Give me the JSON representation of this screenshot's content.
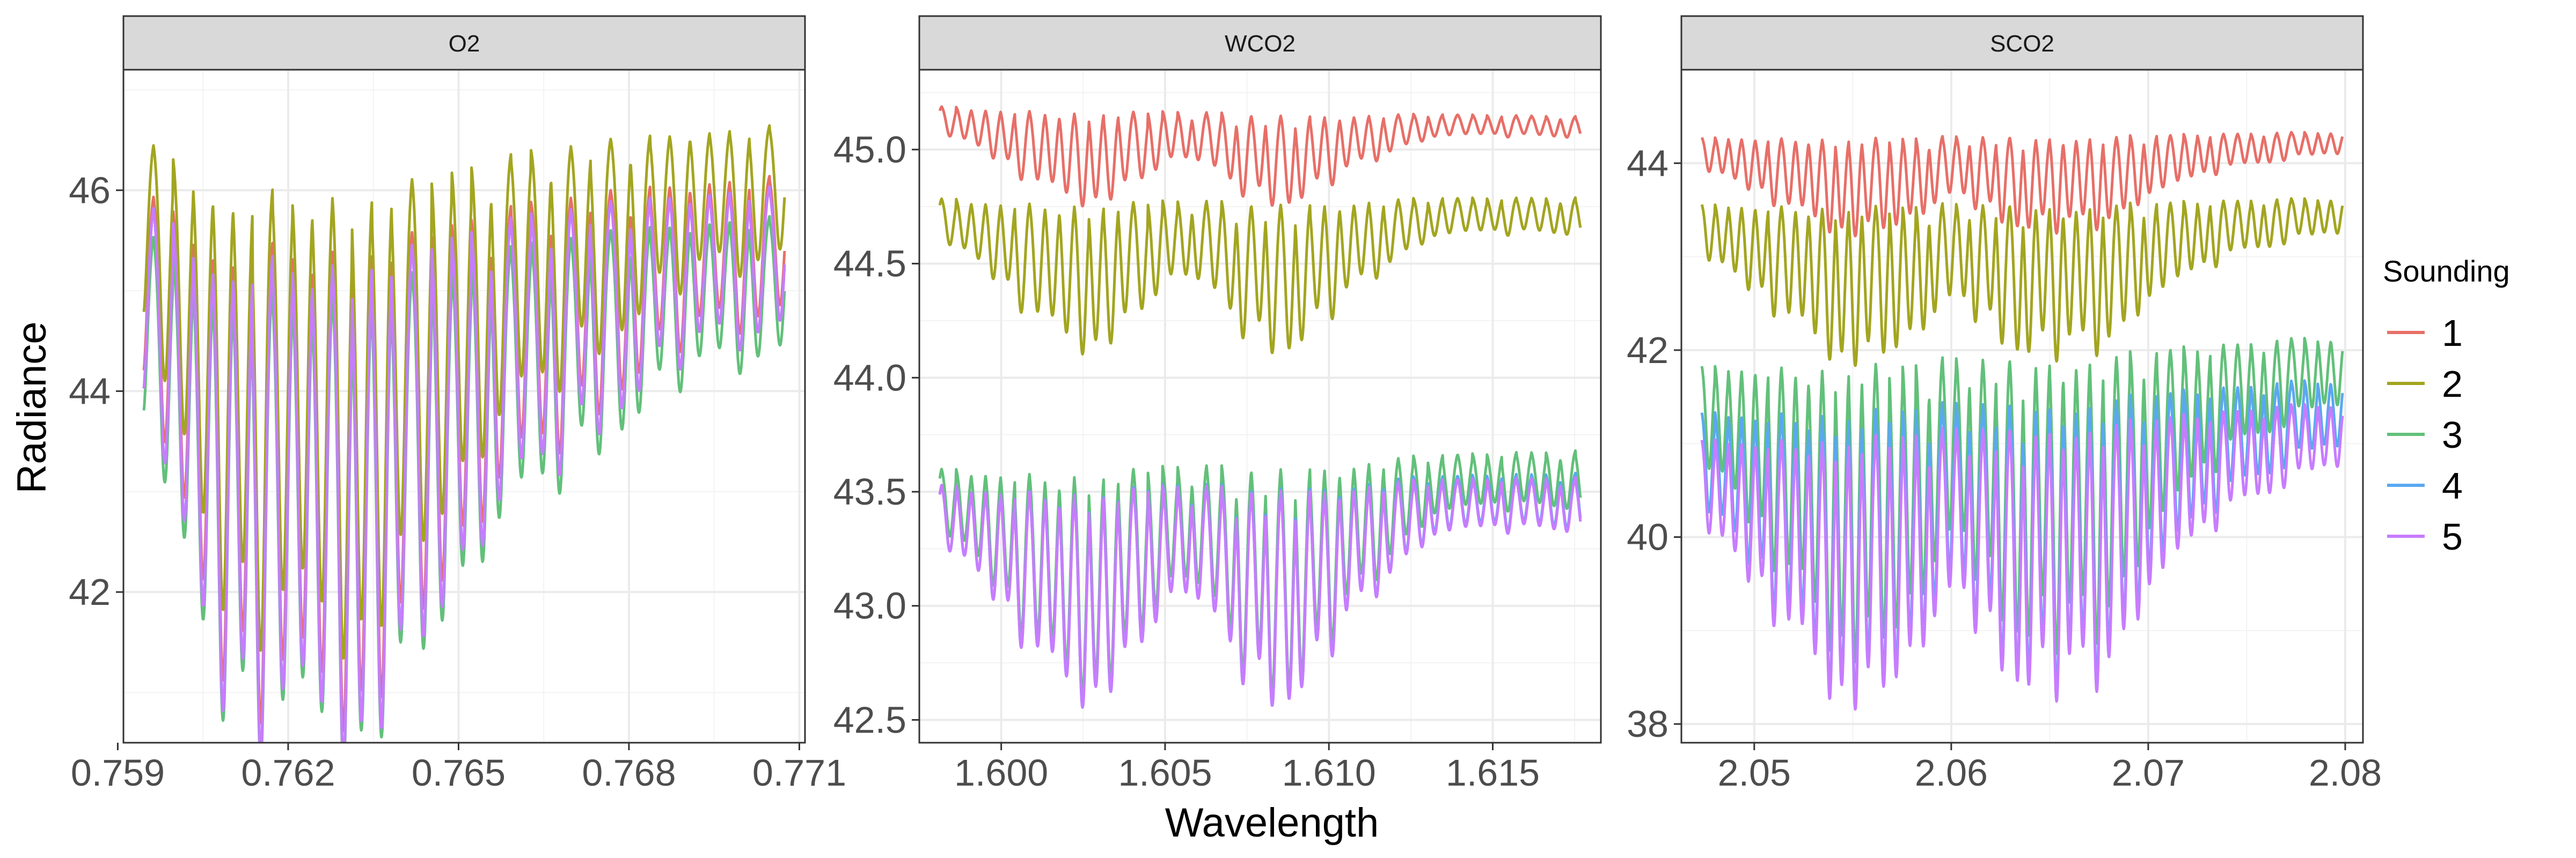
{
  "chart_data": {
    "type": "line",
    "xlabel": "Wavelength",
    "ylabel": "Radiance",
    "legend": {
      "title": "Sounding",
      "position": "right",
      "entries": [
        {
          "name": "1",
          "color": "#E76F68"
        },
        {
          "name": "2",
          "color": "#A3A520"
        },
        {
          "name": "3",
          "color": "#62C07A"
        },
        {
          "name": "4",
          "color": "#5AA8F0"
        },
        {
          "name": "5",
          "color": "#C77CFF"
        }
      ]
    },
    "grid": true,
    "panels": [
      {
        "title": "O2",
        "xlim": [
          0.7591,
          0.7711
        ],
        "ylim": [
          40.5,
          47.2
        ],
        "xticks": [
          0.759,
          0.762,
          0.765,
          0.768,
          0.771
        ],
        "xtick_labels": [
          "0.759",
          "0.762",
          "0.765",
          "0.768",
          "0.771"
        ],
        "yticks": [
          42,
          44,
          46
        ],
        "ytick_labels": [
          "42",
          "44",
          "46"
        ],
        "band": {
          "center": 0.7611,
          "width": 0.0022,
          "depth_max": 0.74,
          "line_spacing": 0.00035,
          "line_width": 8e-05
        },
        "series": [
          {
            "name": "1",
            "baseline": [
              46.25,
              46.25
            ],
            "min": 41.2
          },
          {
            "name": "2",
            "baseline": [
              46.75,
              46.75
            ],
            "min": 41.9
          },
          {
            "name": "3",
            "baseline": [
              45.85,
              45.85
            ],
            "min": 40.8
          },
          {
            "name": "4",
            "baseline": [
              46.15,
              46.15
            ],
            "min": 40.9
          },
          {
            "name": "5",
            "baseline": [
              46.15,
              46.15
            ],
            "min": 40.9
          }
        ]
      },
      {
        "title": "WCO2",
        "xlim": [
          1.5975,
          1.6183
        ],
        "ylim": [
          42.4,
          45.35
        ],
        "xticks": [
          1.6,
          1.605,
          1.61,
          1.615
        ],
        "xtick_labels": [
          "1.600",
          "1.605",
          "1.610",
          "1.615"
        ],
        "yticks": [
          42.5,
          43.0,
          43.5,
          44.0,
          44.5,
          45.0
        ],
        "ytick_labels": [
          "42.5",
          "43.0",
          "43.5",
          "44.0",
          "44.5",
          "45.0"
        ],
        "band": {
          "centers": [
            1.6025,
            1.6085
          ],
          "width": 0.0021,
          "line_spacing": 0.00045,
          "line_width": 0.00011
        },
        "series": [
          {
            "name": "1",
            "baseline": [
              45.2,
              45.15
            ],
            "min": 44.75
          },
          {
            "name": "2",
            "baseline": [
              44.8,
              44.8
            ],
            "min": 44.1
          },
          {
            "name": "3",
            "baseline": [
              43.62,
              43.7
            ],
            "min": 42.6
          },
          {
            "name": "4",
            "baseline": [
              43.55,
              43.6
            ],
            "min": 42.55
          },
          {
            "name": "5",
            "baseline": [
              43.55,
              43.58
            ],
            "min": 42.55
          }
        ]
      },
      {
        "title": "SCO2",
        "xlim": [
          2.0463,
          2.0809
        ],
        "ylim": [
          37.8,
          45.0
        ],
        "xticks": [
          2.05,
          2.06,
          2.07,
          2.08
        ],
        "xtick_labels": [
          "2.05",
          "2.06",
          "2.07",
          "2.08"
        ],
        "yticks": [
          38,
          40,
          42,
          44
        ],
        "ytick_labels": [
          "38",
          "40",
          "42",
          "44"
        ],
        "band": {
          "centers": [
            2.0555,
            2.0655
          ],
          "width": 0.0045,
          "line_spacing": 0.00068,
          "line_width": 0.00016
        },
        "series": [
          {
            "name": "1",
            "baseline": [
              44.3,
              44.35
            ],
            "min": 43.2
          },
          {
            "name": "2",
            "baseline": [
              43.6,
              43.65
            ],
            "min": 41.8
          },
          {
            "name": "3",
            "baseline": [
              41.9,
              42.2
            ],
            "min": 38.6
          },
          {
            "name": "4",
            "baseline": [
              41.4,
              41.75
            ],
            "min": 38.2
          },
          {
            "name": "5",
            "baseline": [
              41.1,
              41.5
            ],
            "min": 38.1
          }
        ]
      }
    ]
  }
}
